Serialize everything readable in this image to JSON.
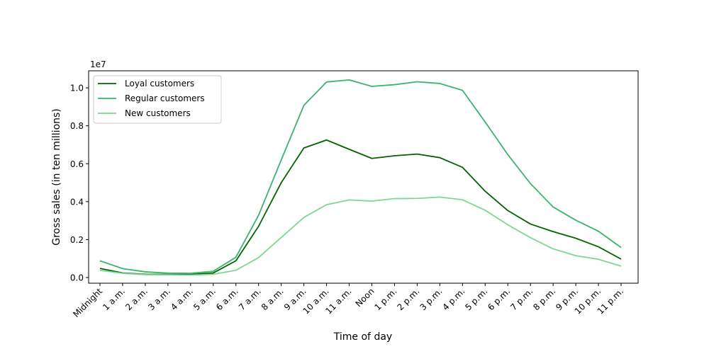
{
  "chart_data": {
    "type": "line",
    "title": "",
    "xlabel": "Time of day",
    "ylabel": "Gross sales (in ten millions)",
    "y_offset_text": "1e7",
    "y_scale_factor": 10000000,
    "ylim": [
      -0.03,
      1.09
    ],
    "yticks": [
      0.0,
      0.2,
      0.4,
      0.6,
      0.8,
      1.0
    ],
    "ytick_labels": [
      "0.0",
      "0.2",
      "0.4",
      "0.6",
      "0.8",
      "1.0"
    ],
    "categories": [
      "Midnight",
      "1 a.m.",
      "2 a.m.",
      "3 a.m.",
      "4 a.m.",
      "5 a.m.",
      "6 a.m.",
      "7 a.m.",
      "8 a.m.",
      "9 a.m.",
      "10 a.m.",
      "11 a.m.",
      "Noon",
      "1 p.m.",
      "2 p.m.",
      "3 p.m.",
      "4 p.m.",
      "5 p.m.",
      "6 p.m.",
      "7 p.m.",
      "8 p.m.",
      "9 p.m.",
      "10 p.m.",
      "11 p.m."
    ],
    "grid": false,
    "legend_position": "top-left",
    "series": [
      {
        "name": "Loyal customers",
        "color": "#006400",
        "values": [
          0.048,
          0.024,
          0.017,
          0.016,
          0.016,
          0.024,
          0.088,
          0.27,
          0.5,
          0.683,
          0.725,
          0.676,
          0.628,
          0.642,
          0.651,
          0.632,
          0.581,
          0.455,
          0.353,
          0.282,
          0.242,
          0.207,
          0.162,
          0.097
        ]
      },
      {
        "name": "Regular customers",
        "color": "#3cb371",
        "values": [
          0.088,
          0.047,
          0.03,
          0.023,
          0.022,
          0.033,
          0.107,
          0.328,
          0.62,
          0.908,
          1.031,
          1.042,
          1.008,
          1.017,
          1.032,
          1.023,
          0.987,
          0.82,
          0.648,
          0.495,
          0.372,
          0.302,
          0.244,
          0.158
        ]
      },
      {
        "name": "New customers",
        "color": "#7fd693",
        "values": [
          0.038,
          0.022,
          0.015,
          0.014,
          0.013,
          0.017,
          0.038,
          0.105,
          0.211,
          0.317,
          0.384,
          0.409,
          0.403,
          0.416,
          0.417,
          0.424,
          0.41,
          0.355,
          0.278,
          0.21,
          0.151,
          0.115,
          0.096,
          0.06
        ]
      }
    ]
  }
}
